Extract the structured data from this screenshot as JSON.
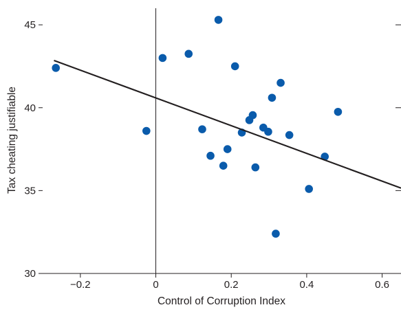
{
  "chart_data": {
    "type": "scatter",
    "title": "",
    "xlabel": "Control of Corruption Index",
    "ylabel": "Tax cheating justifiable",
    "xlim": [
      -0.3,
      0.65
    ],
    "ylim": [
      30,
      46
    ],
    "x_ticks": [
      -0.2,
      0,
      0.2,
      0.4,
      0.6
    ],
    "x_tick_labels": [
      "−0.2",
      "0",
      "0.2",
      "0.4",
      "0.6"
    ],
    "y_ticks": [
      30,
      35,
      40,
      45
    ],
    "y_tick_labels": [
      "30",
      "35",
      "40",
      "45"
    ],
    "grid": false,
    "reference_line_x": 0,
    "marker_color": "#0a5bab",
    "line_color": "#231f20",
    "series": [
      {
        "points": [
          {
            "x": -0.265,
            "y": 42.4
          },
          {
            "x": -0.025,
            "y": 38.6
          },
          {
            "x": 0.018,
            "y": 43.0
          },
          {
            "x": 0.087,
            "y": 43.25
          },
          {
            "x": 0.123,
            "y": 38.7
          },
          {
            "x": 0.145,
            "y": 37.1
          },
          {
            "x": 0.166,
            "y": 45.3
          },
          {
            "x": 0.179,
            "y": 36.5
          },
          {
            "x": 0.19,
            "y": 37.5
          },
          {
            "x": 0.21,
            "y": 42.5
          },
          {
            "x": 0.228,
            "y": 38.5
          },
          {
            "x": 0.248,
            "y": 39.25
          },
          {
            "x": 0.257,
            "y": 39.55
          },
          {
            "x": 0.264,
            "y": 36.4
          },
          {
            "x": 0.285,
            "y": 38.8
          },
          {
            "x": 0.298,
            "y": 38.55
          },
          {
            "x": 0.308,
            "y": 40.6
          },
          {
            "x": 0.331,
            "y": 41.5
          },
          {
            "x": 0.354,
            "y": 38.35
          },
          {
            "x": 0.318,
            "y": 32.4
          },
          {
            "x": 0.406,
            "y": 35.1
          },
          {
            "x": 0.448,
            "y": 37.05
          },
          {
            "x": 0.483,
            "y": 39.75
          }
        ]
      }
    ],
    "trend_line": {
      "x": [
        -0.27,
        0.65
      ],
      "y": [
        42.85,
        35.15
      ]
    }
  }
}
